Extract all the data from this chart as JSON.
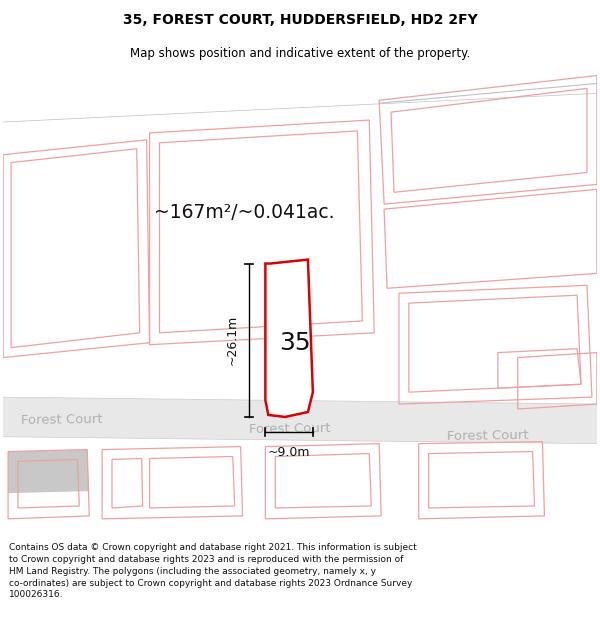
{
  "title": "35, FOREST COURT, HUDDERSFIELD, HD2 2FY",
  "subtitle": "Map shows position and indicative extent of the property.",
  "area_text": "~167m²/~0.041ac.",
  "dim_vertical": "~26.1m",
  "dim_horizontal": "~9.0m",
  "label_number": "35",
  "road_label": "Forest Court",
  "copyright_text": "Contains OS data © Crown copyright and database right 2021. This information is subject to Crown copyright and database rights 2023 and is reproduced with the permission of HM Land Registry. The polygons (including the associated geometry, namely x, y co-ordinates) are subject to Crown copyright and database rights 2023 Ordnance Survey 100026316.",
  "bg_color": "#ffffff",
  "building_outline_color": "#f0a0a0",
  "property_outline_color": "#dd0000",
  "road_fill_color": "#e8e8e8",
  "road_line_color": "#cccccc",
  "road_text_color": "#b0b0b0",
  "dim_color": "#111111",
  "title_color": "#000000",
  "copyright_color": "#111111",
  "gray_building_color": "#c8c8c8"
}
